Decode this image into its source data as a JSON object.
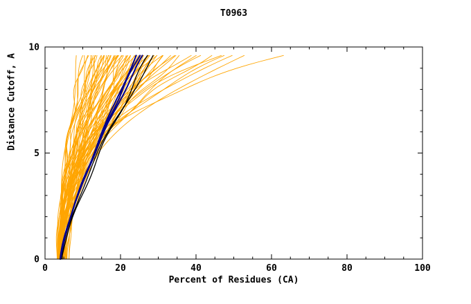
{
  "chart_data": {
    "type": "line",
    "title": "T0963",
    "xlabel": "Percent of Residues (CA)",
    "ylabel": "Distance Cutoff, A",
    "xlim": [
      0,
      100
    ],
    "ylim": [
      0,
      10
    ],
    "xticks": {
      "major": [
        0,
        20,
        40,
        60,
        80,
        100
      ],
      "minor_step": 5
    },
    "yticks": {
      "major": [
        0,
        5,
        10
      ],
      "minor_step": 1
    },
    "grid": false,
    "legend": "none",
    "background": "#FFFFFF",
    "frame_color": "#000000",
    "curve_top_y": 9.6,
    "curve_model": "x(y) = x_bottom + (x_top - x_bottom) * (y/9.6)^bend ; each curve = [x_bottom, x_top, bend]",
    "groups": [
      {
        "name": "prediction",
        "color": "#FFA500",
        "width": 0.9,
        "jitter": 0.8,
        "curves": [
          [
            3.5,
            9,
            1.6
          ],
          [
            4.0,
            10,
            1.8
          ],
          [
            3.8,
            11,
            2.0
          ],
          [
            4.2,
            12,
            1.7
          ],
          [
            3.6,
            12.5,
            2.2
          ],
          [
            4.5,
            13,
            1.5
          ],
          [
            4.0,
            13.5,
            2.4
          ],
          [
            3.7,
            14,
            1.9
          ],
          [
            4.3,
            14.5,
            1.6
          ],
          [
            4.8,
            15,
            2.1
          ],
          [
            3.9,
            15.5,
            1.8
          ],
          [
            4.1,
            16,
            2.3
          ],
          [
            4.6,
            16.5,
            1.7
          ],
          [
            3.5,
            17,
            2.0
          ],
          [
            4.2,
            17.5,
            1.5
          ],
          [
            4.7,
            18,
            2.2
          ],
          [
            3.8,
            18.5,
            1.9
          ],
          [
            4.4,
            19,
            1.6
          ],
          [
            4.0,
            19.5,
            2.4
          ],
          [
            4.9,
            20,
            1.8
          ],
          [
            3.6,
            20.5,
            2.1
          ],
          [
            4.3,
            21,
            1.7
          ],
          [
            4.1,
            21.5,
            2.0
          ],
          [
            4.6,
            22,
            1.5
          ],
          [
            3.9,
            22.5,
            2.3
          ],
          [
            4.4,
            23,
            1.8
          ],
          [
            4.8,
            23.5,
            1.6
          ],
          [
            4.0,
            24,
            2.2
          ],
          [
            4.5,
            24.5,
            1.9
          ],
          [
            3.7,
            25,
            1.7
          ],
          [
            4.2,
            25.5,
            2.1
          ],
          [
            4.7,
            26,
            1.6
          ],
          [
            4.1,
            26.5,
            2.0
          ],
          [
            4.4,
            27,
            1.8
          ],
          [
            3.8,
            27.5,
            2.3
          ],
          [
            4.6,
            28,
            1.5
          ],
          [
            4.0,
            28.5,
            1.9
          ],
          [
            4.3,
            29,
            2.2
          ],
          [
            4.9,
            29.5,
            1.7
          ],
          [
            4.1,
            30,
            2.0
          ],
          [
            4.5,
            30.5,
            1.6
          ],
          [
            3.9,
            31,
            2.1
          ],
          [
            4.2,
            32,
            1.8
          ],
          [
            4.6,
            33,
            2.4
          ],
          [
            4.0,
            34,
            1.9
          ],
          [
            4.4,
            35,
            2.6
          ],
          [
            3.8,
            36,
            2.0
          ],
          [
            4.3,
            38,
            2.8
          ],
          [
            4.7,
            40,
            2.2
          ],
          [
            4.1,
            42,
            3.0
          ],
          [
            4.5,
            44,
            2.5
          ],
          [
            3.9,
            46,
            3.2
          ],
          [
            4.2,
            48,
            2.7
          ],
          [
            4.6,
            50,
            3.0
          ],
          [
            4.0,
            52,
            2.4
          ],
          [
            5.0,
            63,
            3.4
          ],
          [
            5.5,
            14,
            1.4
          ],
          [
            6.0,
            16,
            1.6
          ],
          [
            5.2,
            18,
            1.8
          ],
          [
            5.8,
            20,
            1.5
          ],
          [
            5.4,
            22,
            2.0
          ],
          [
            6.2,
            24,
            1.7
          ],
          [
            5.6,
            26,
            1.9
          ],
          [
            5.0,
            28,
            1.6
          ],
          [
            5.3,
            12,
            1.5
          ],
          [
            6.5,
            15,
            1.8
          ],
          [
            3.2,
            10.5,
            1.7
          ],
          [
            3.4,
            13.2,
            2.1
          ],
          [
            3.3,
            16.8,
            1.9
          ],
          [
            3.1,
            19.2,
            2.2
          ],
          [
            3.5,
            23.4,
            1.8
          ],
          [
            3.2,
            27.2,
            2.0
          ]
        ]
      },
      {
        "name": "reference-black",
        "color": "#000000",
        "width": 1.3,
        "jitter": 0.6,
        "curves": [
          [
            4.3,
            27.5,
            1.25
          ],
          [
            4.6,
            29.0,
            1.45
          ]
        ]
      },
      {
        "name": "highlight-blue",
        "color": "#00008B",
        "width": 2.0,
        "jitter": 0.25,
        "curves": [
          [
            4.0,
            25.0,
            1.3
          ],
          [
            4.15,
            26.0,
            1.35
          ],
          [
            4.05,
            24.2,
            1.25
          ]
        ]
      }
    ]
  }
}
